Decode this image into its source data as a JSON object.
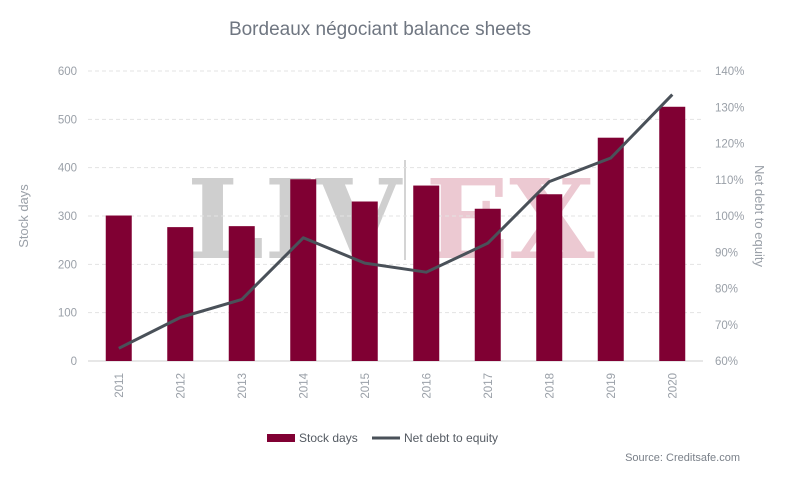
{
  "chart_data": {
    "type": "bar",
    "title": "Bordeaux négociant balance sheets",
    "categories": [
      "2011",
      "2012",
      "2013",
      "2014",
      "2015",
      "2016",
      "2017",
      "2018",
      "2019",
      "2020"
    ],
    "series": [
      {
        "name": "Stock days",
        "type": "bar",
        "axis": "left",
        "color": "#800033",
        "values": [
          301,
          277,
          279,
          376,
          330,
          363,
          315,
          345,
          462,
          526
        ]
      },
      {
        "name": "Net debt to equity",
        "type": "line",
        "axis": "right",
        "color": "#4a5159",
        "values": [
          63.5,
          72,
          77,
          94,
          87,
          84.5,
          92.5,
          109.5,
          116,
          133.5
        ]
      }
    ],
    "ylabel": "Stock days",
    "y2label": "Net debt to equity",
    "ylim": [
      0,
      600
    ],
    "yticks": [
      0,
      100,
      200,
      300,
      400,
      500,
      600
    ],
    "y2lim": [
      60,
      140
    ],
    "y2ticks": [
      "60%",
      "70%",
      "80%",
      "90%",
      "100%",
      "110%",
      "120%",
      "130%",
      "140%"
    ],
    "grid": true,
    "legend": "bottom-center",
    "source": "Source: Creditsafe.com",
    "watermark": {
      "left": "LIV",
      "right": "EX"
    }
  }
}
